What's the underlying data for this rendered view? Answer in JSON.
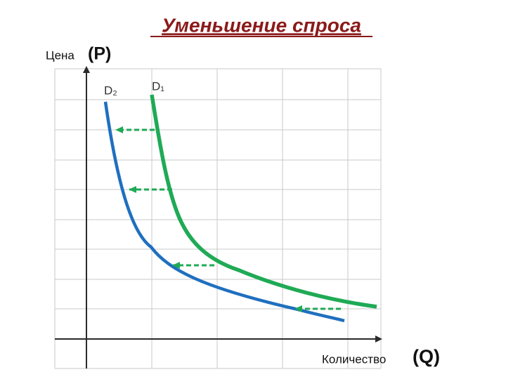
{
  "title": "Уменьшение спроса",
  "y_axis": {
    "label": "Цена",
    "symbol": "(P)"
  },
  "x_axis": {
    "label": "Количество",
    "symbol": "(Q)"
  },
  "curves": [
    {
      "label": "D₂"
    },
    {
      "label": "D₁"
    }
  ]
}
